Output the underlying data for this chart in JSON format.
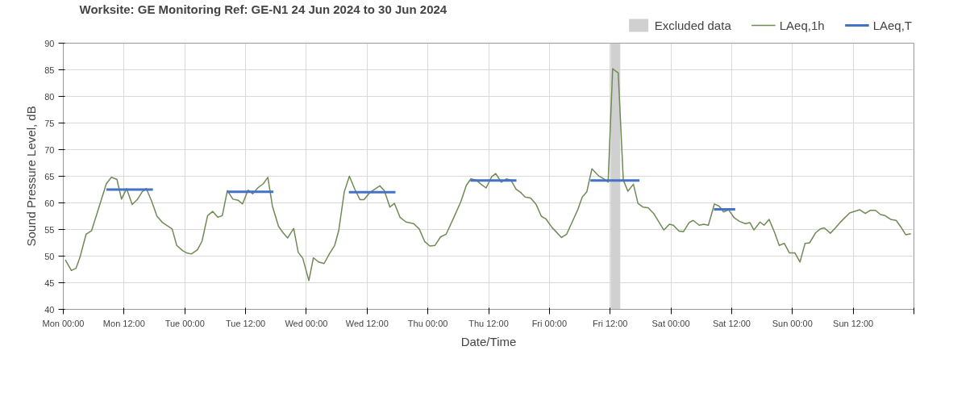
{
  "chart_data": {
    "type": "line",
    "title": "Worksite: GE   Monitoring Ref: GE-N1     24 Jun 2024 to 30 Jun 2024",
    "xlabel": "Date/Time",
    "ylabel": "Sound Pressure Level, dB",
    "xlim": [
      "2024-06-24T00:00",
      "2024-07-01T00:00"
    ],
    "ylim": [
      40,
      90
    ],
    "xticks": [
      {
        "value": "2024-06-24T00:00",
        "label": "Mon 00:00"
      },
      {
        "value": "2024-06-24T12:00",
        "label": "Mon 12:00"
      },
      {
        "value": "2024-06-25T00:00",
        "label": "Tue 00:00"
      },
      {
        "value": "2024-06-25T12:00",
        "label": "Tue 12:00"
      },
      {
        "value": "2024-06-26T00:00",
        "label": "Wed 00:00"
      },
      {
        "value": "2024-06-26T12:00",
        "label": "Wed 12:00"
      },
      {
        "value": "2024-06-27T00:00",
        "label": "Thu 00:00"
      },
      {
        "value": "2024-06-27T12:00",
        "label": "Thu 12:00"
      },
      {
        "value": "2024-06-28T00:00",
        "label": "Fri 00:00"
      },
      {
        "value": "2024-06-28T12:00",
        "label": "Fri 12:00"
      },
      {
        "value": "2024-06-29T00:00",
        "label": "Sat 00:00"
      },
      {
        "value": "2024-06-29T12:00",
        "label": "Sat 12:00"
      },
      {
        "value": "2024-06-30T00:00",
        "label": "Sun 00:00"
      },
      {
        "value": "2024-06-30T12:00",
        "label": "Sun 12:00"
      },
      {
        "value": "2024-07-01T00:00",
        "label": null
      }
    ],
    "yticks": [
      40,
      45,
      50,
      55,
      60,
      65,
      70,
      75,
      80,
      85,
      90
    ],
    "grid": true,
    "legend": "top right",
    "bands": [
      {
        "axis": "x",
        "from": "2024-06-28T12:06",
        "to": "2024-06-28T14:00",
        "label": "Excluded data",
        "color": "#d0d0d0"
      }
    ],
    "series": [
      {
        "name": "LAeq,1h",
        "color": "#6f8a55",
        "x": [
          "2024-06-24T00:24",
          "2024-06-24T01:36",
          "2024-06-24T02:30",
          "2024-06-24T03:18",
          "2024-06-24T04:30",
          "2024-06-24T05:36",
          "2024-06-24T08:30",
          "2024-06-24T09:30",
          "2024-06-24T10:36",
          "2024-06-24T11:30",
          "2024-06-24T12:30",
          "2024-06-24T13:36",
          "2024-06-24T14:36",
          "2024-06-24T15:36",
          "2024-06-24T16:24",
          "2024-06-24T17:30",
          "2024-06-24T18:30",
          "2024-06-24T19:36",
          "2024-06-24T21:30",
          "2024-06-24T22:24",
          "2024-06-24T23:36",
          "2024-06-25T00:24",
          "2024-06-25T01:18",
          "2024-06-25T02:30",
          "2024-06-25T03:24",
          "2024-06-25T04:30",
          "2024-06-25T05:30",
          "2024-06-25T06:30",
          "2024-06-25T07:24",
          "2024-06-25T08:24",
          "2024-06-25T09:30",
          "2024-06-25T10:30",
          "2024-06-25T11:24",
          "2024-06-25T12:30",
          "2024-06-25T13:24",
          "2024-06-25T14:24",
          "2024-06-25T15:30",
          "2024-06-25T16:24",
          "2024-06-25T17:18",
          "2024-06-25T18:30",
          "2024-06-25T19:24",
          "2024-06-25T20:18",
          "2024-06-25T21:30",
          "2024-06-25T22:24",
          "2024-06-25T23:18",
          "2024-06-26T00:30",
          "2024-06-26T01:24",
          "2024-06-26T02:24",
          "2024-06-26T03:30",
          "2024-06-26T04:36",
          "2024-06-26T05:36",
          "2024-06-26T06:24",
          "2024-06-26T07:30",
          "2024-06-26T08:30",
          "2024-06-26T09:36",
          "2024-06-26T10:36",
          "2024-06-26T11:24",
          "2024-06-26T12:30",
          "2024-06-26T14:30",
          "2024-06-26T15:24",
          "2024-06-26T16:30",
          "2024-06-26T17:24",
          "2024-06-26T18:30",
          "2024-06-26T19:42",
          "2024-06-26T21:12",
          "2024-06-26T22:18",
          "2024-06-26T23:24",
          "2024-06-27T00:24",
          "2024-06-27T01:24",
          "2024-06-27T02:30",
          "2024-06-27T03:36",
          "2024-06-27T05:12",
          "2024-06-27T06:30",
          "2024-06-27T07:36",
          "2024-06-27T08:30",
          "2024-06-27T09:30",
          "2024-06-27T10:30",
          "2024-06-27T11:30",
          "2024-06-27T12:36",
          "2024-06-27T13:24",
          "2024-06-27T14:30",
          "2024-06-27T15:30",
          "2024-06-27T16:24",
          "2024-06-27T17:24",
          "2024-06-27T18:24",
          "2024-06-27T19:12",
          "2024-06-27T20:18",
          "2024-06-27T21:24",
          "2024-06-27T22:24",
          "2024-06-27T23:18",
          "2024-06-28T00:30",
          "2024-06-28T02:24",
          "2024-06-28T03:24",
          "2024-06-28T04:30",
          "2024-06-28T05:36",
          "2024-06-28T06:30",
          "2024-06-28T07:24",
          "2024-06-28T08:24",
          "2024-06-28T09:42",
          "2024-06-28T10:48",
          "2024-06-28T11:36",
          "2024-06-28T12:30",
          "2024-06-28T13:36",
          "2024-06-28T14:36",
          "2024-06-28T15:30",
          "2024-06-28T16:36",
          "2024-06-28T17:30",
          "2024-06-28T18:30",
          "2024-06-28T19:30",
          "2024-06-28T20:36",
          "2024-06-28T22:36",
          "2024-06-28T23:42",
          "2024-06-29T00:30",
          "2024-06-29T01:36",
          "2024-06-29T02:30",
          "2024-06-29T03:36",
          "2024-06-29T04:24",
          "2024-06-29T05:36",
          "2024-06-29T06:30",
          "2024-06-29T07:24",
          "2024-06-29T08:36",
          "2024-06-29T09:30",
          "2024-06-29T10:24",
          "2024-06-29T11:24",
          "2024-06-29T12:30",
          "2024-06-29T13:36",
          "2024-06-29T14:42",
          "2024-06-29T15:36",
          "2024-06-29T16:24",
          "2024-06-29T17:36",
          "2024-06-29T18:24",
          "2024-06-29T19:24",
          "2024-06-29T20:30",
          "2024-06-29T21:24",
          "2024-06-29T22:24",
          "2024-06-29T23:24",
          "2024-06-30T00:30",
          "2024-06-30T01:30",
          "2024-06-30T02:30",
          "2024-06-30T03:24",
          "2024-06-30T04:36",
          "2024-06-30T05:30",
          "2024-06-30T06:18",
          "2024-06-30T07:30",
          "2024-06-30T08:30",
          "2024-06-30T09:36",
          "2024-06-30T11:18",
          "2024-06-30T13:18",
          "2024-06-30T14:24",
          "2024-06-30T15:24",
          "2024-06-30T16:24",
          "2024-06-30T17:24",
          "2024-06-30T18:18",
          "2024-06-30T19:24",
          "2024-06-30T20:30",
          "2024-06-30T21:24",
          "2024-06-30T22:24",
          "2024-06-30T23:24"
        ],
        "values": [
          49.3,
          47.3,
          47.7,
          49.8,
          54.1,
          54.8,
          63.6,
          64.8,
          64.4,
          60.7,
          62.7,
          59.7,
          60.6,
          62.1,
          62.7,
          60.2,
          57.5,
          56.3,
          55.1,
          52.0,
          51.0,
          50.6,
          50.4,
          51.2,
          52.8,
          57.6,
          58.4,
          57.3,
          57.6,
          62.3,
          60.7,
          60.5,
          59.8,
          62.4,
          61.7,
          62.8,
          63.6,
          64.8,
          59.4,
          55.6,
          54.4,
          53.4,
          55.2,
          50.7,
          49.6,
          45.4,
          49.7,
          48.9,
          48.6,
          50.5,
          52.0,
          54.8,
          62.1,
          65.0,
          62.5,
          60.6,
          60.6,
          61.9,
          63.2,
          62.3,
          59.2,
          59.9,
          57.3,
          56.4,
          56.1,
          55.1,
          52.7,
          51.9,
          52.0,
          53.6,
          54.1,
          57.4,
          60.2,
          63.3,
          64.5,
          64.3,
          63.5,
          62.8,
          64.9,
          65.5,
          63.9,
          64.5,
          64.3,
          62.6,
          61.9,
          61.1,
          60.9,
          59.7,
          57.5,
          57.0,
          55.4,
          53.5,
          54.1,
          56.4,
          58.7,
          61.1,
          62.1,
          66.4,
          65.1,
          64.5,
          63.9,
          85.2,
          84.4,
          64.3,
          62.2,
          63.5,
          59.9,
          59.2,
          59.1,
          58.0,
          54.9,
          56.0,
          55.8,
          54.7,
          54.6,
          56.3,
          56.7,
          55.8,
          56.0,
          55.8,
          59.8,
          59.4,
          58.3,
          58.7,
          57.2,
          56.5,
          56.1,
          56.3,
          54.9,
          56.4,
          55.8,
          56.9,
          54.4,
          52.0,
          52.4,
          50.6,
          50.6,
          48.9,
          52.4,
          52.5,
          54.4,
          55.1,
          55.3,
          54.3,
          55.3,
          56.5,
          58.1,
          58.7,
          58.0,
          58.6,
          58.6,
          57.8,
          57.6,
          56.9,
          56.7,
          55.5,
          54.0,
          54.2
        ]
      },
      {
        "name": "LAeq,T",
        "color": "#4472c4",
        "x": [
          "2024-06-24T08:30",
          "2024-06-24T17:42",
          "2024-06-25T01:00",
          "2024-06-25T08:24",
          "2024-06-25T17:30",
          "2024-06-26T01:00",
          "2024-06-26T08:24",
          "2024-06-26T17:36",
          "2024-06-27T01:00",
          "2024-06-27T08:24",
          "2024-06-27T17:30",
          "2024-06-28T01:00",
          "2024-06-28T08:06",
          "2024-06-28T17:48",
          "2024-06-29T01:00",
          "2024-06-29T08:30",
          "2024-06-29T12:42"
        ],
        "values": [
          62.5,
          62.5,
          null,
          62.1,
          62.1,
          null,
          62.0,
          62.0,
          null,
          64.2,
          64.2,
          null,
          64.2,
          64.2,
          null,
          58.8,
          58.8
        ]
      }
    ]
  }
}
